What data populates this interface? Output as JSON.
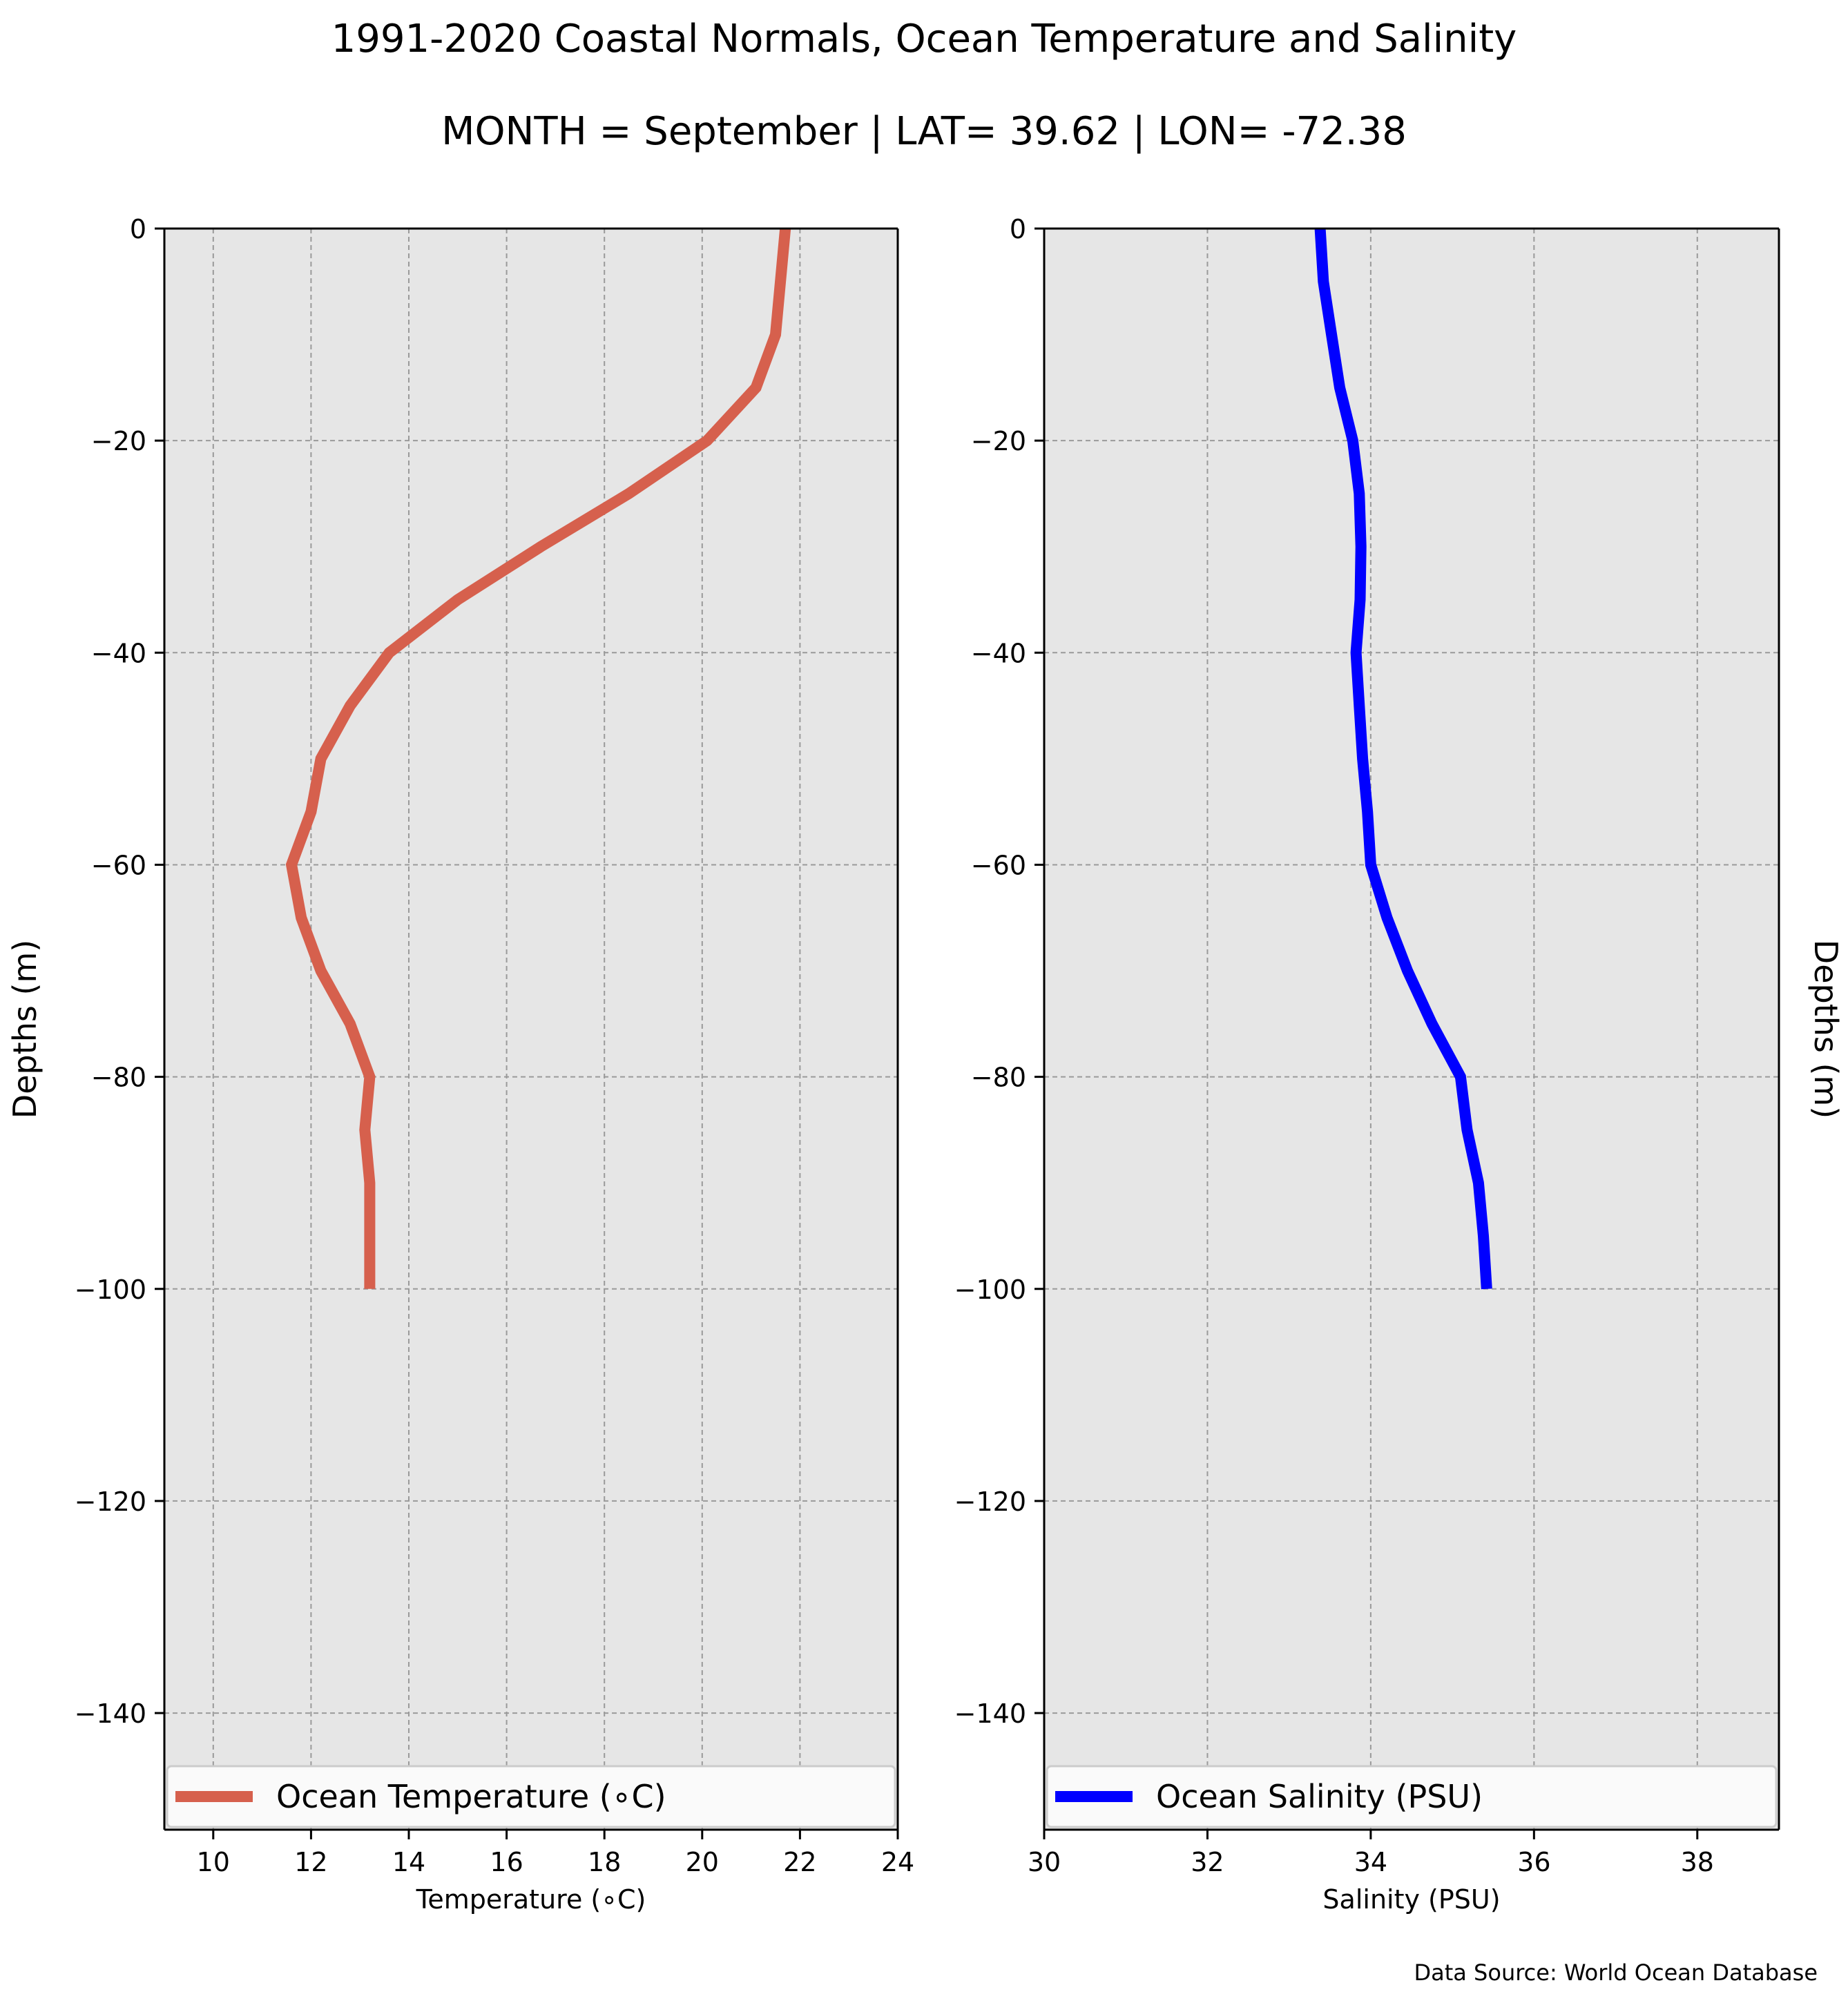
{
  "page": {
    "title": "1991-2020 Coastal Normals, Ocean Temperature and Salinity",
    "subtitle": "MONTH = September | LAT= 39.62 | LON= -72.38",
    "source": "Data Source: World Ocean Database"
  },
  "chart_data": [
    {
      "type": "line",
      "xlabel": "Temperature (∘C)",
      "ylabel": "Depths (m)",
      "xlim": [
        9,
        24
      ],
      "ylim": [
        -151,
        0
      ],
      "x_ticks": [
        10,
        12,
        14,
        16,
        18,
        20,
        22,
        24
      ],
      "y_ticks": [
        0,
        -20,
        -40,
        -60,
        -80,
        -100,
        -120,
        -140
      ],
      "grid": true,
      "legend_position": "bottom",
      "color": "#d6604d",
      "series": [
        {
          "name": "Ocean Temperature (∘C)",
          "x": [
            21.7,
            21.6,
            21.5,
            21.1,
            20.1,
            18.5,
            16.7,
            15.0,
            13.6,
            12.8,
            12.2,
            12.0,
            11.6,
            11.8,
            12.2,
            12.8,
            13.2,
            13.1,
            13.2,
            13.2,
            13.2
          ],
          "y": [
            0,
            -5,
            -10,
            -15,
            -20,
            -25,
            -30,
            -35,
            -40,
            -45,
            -50,
            -55,
            -60,
            -65,
            -70,
            -75,
            -80,
            -85,
            -90,
            -95,
            -100
          ]
        }
      ]
    },
    {
      "type": "line",
      "xlabel": "Salinity (PSU)",
      "ylabel": "Depths (m)",
      "xlim": [
        30,
        39
      ],
      "ylim": [
        -151,
        0
      ],
      "x_ticks": [
        30,
        32,
        34,
        36,
        38
      ],
      "y_ticks": [
        0,
        -20,
        -40,
        -60,
        -80,
        -100,
        -120,
        -140
      ],
      "grid": true,
      "legend_position": "bottom",
      "color": "#0000ff",
      "series": [
        {
          "name": "Ocean Salinity (PSU)",
          "x": [
            33.38,
            33.42,
            33.52,
            33.62,
            33.78,
            33.86,
            33.88,
            33.87,
            33.82,
            33.86,
            33.9,
            33.96,
            34.0,
            34.2,
            34.45,
            34.75,
            35.1,
            35.18,
            35.32,
            35.38,
            35.42
          ],
          "y": [
            0,
            -5,
            -10,
            -15,
            -20,
            -25,
            -30,
            -35,
            -40,
            -45,
            -50,
            -55,
            -60,
            -65,
            -70,
            -75,
            -80,
            -85,
            -90,
            -95,
            -100
          ]
        }
      ]
    }
  ]
}
